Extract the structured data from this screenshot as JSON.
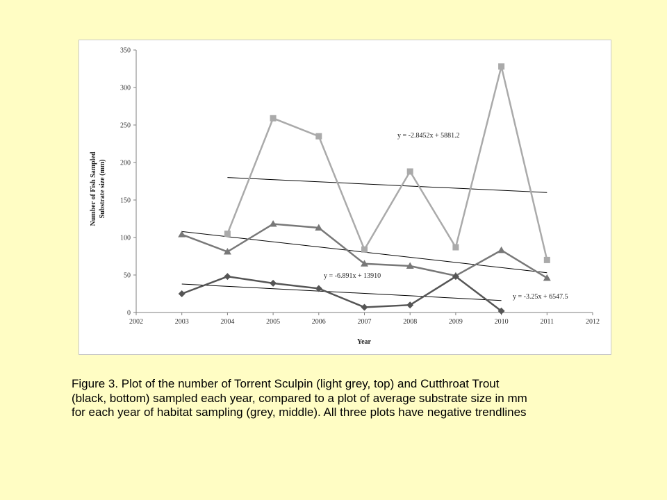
{
  "chart_data": {
    "type": "line",
    "title": "",
    "xlabel": "Year",
    "ylabel": [
      "Number of Fish Sampled",
      "Substrate size (mm)"
    ],
    "xlim": [
      2002,
      2012
    ],
    "ylim": [
      0,
      350
    ],
    "xticks": [
      2002,
      2003,
      2004,
      2005,
      2006,
      2007,
      2008,
      2009,
      2010,
      2011,
      2012
    ],
    "yticks": [
      0,
      50,
      100,
      150,
      200,
      250,
      300,
      350
    ],
    "grid": false,
    "legend": false,
    "series": [
      {
        "color": "#aaaaaa",
        "marker": "square",
        "x": [
          2004,
          2005,
          2006,
          2007,
          2008,
          2009,
          2010,
          2011
        ],
        "y": [
          105,
          259,
          235,
          84,
          188,
          87,
          328,
          70
        ],
        "trendline": {
          "x": [
            2004,
            2011
          ],
          "y": [
            180,
            160
          ],
          "equation": "y = -2.8452x + 5881.2"
        }
      },
      {
        "color": "#787878",
        "marker": "triangle",
        "x": [
          2003,
          2004,
          2005,
          2006,
          2007,
          2008,
          2009,
          2010,
          2011
        ],
        "y": [
          104,
          81,
          118,
          113,
          65,
          62,
          49,
          83,
          46
        ],
        "trendline": {
          "x": [
            2003,
            2011
          ],
          "y": [
            108,
            53
          ],
          "equation": "y = -6.891x + 13910"
        }
      },
      {
        "color": "#555555",
        "marker": "diamond",
        "x": [
          2003,
          2004,
          2005,
          2006,
          2007,
          2008,
          2009,
          2010
        ],
        "y": [
          25,
          48,
          39,
          32,
          7,
          10,
          48,
          2
        ],
        "trendline": {
          "x": [
            2003,
            2010
          ],
          "y": [
            38,
            16
          ],
          "equation": "y = -3.25x + 6547.5"
        }
      }
    ]
  },
  "caption": [
    "Figure 3. Plot of the number of Torrent Sculpin (light grey, top) and Cutthroat Trout",
    "(black, bottom) sampled each year, compared to a plot of average substrate size in mm",
    "for each year of habitat sampling (grey, middle).  All three plots have negative trendlines"
  ]
}
